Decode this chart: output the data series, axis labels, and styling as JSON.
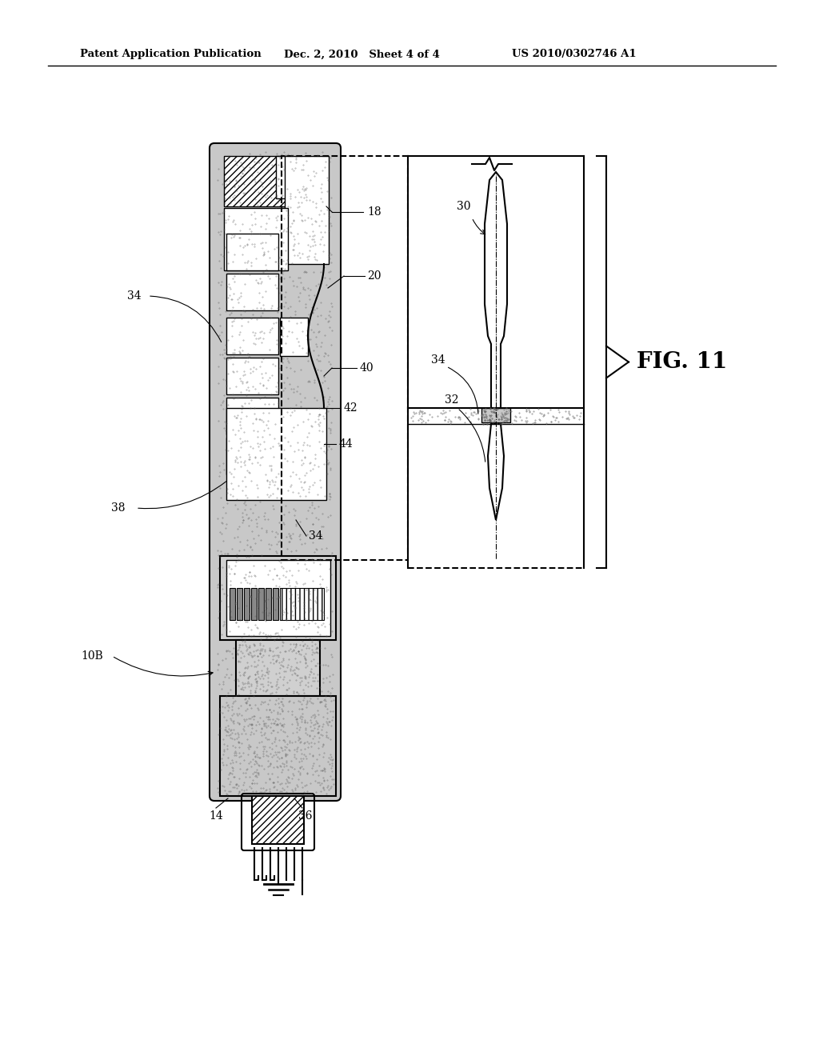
{
  "header_left": "Patent Application Publication",
  "header_mid": "Dec. 2, 2010   Sheet 4 of 4",
  "header_right": "US 2010/0302746 A1",
  "fig_label": "FIG. 11",
  "bg_color": "#ffffff",
  "line_color": "#000000",
  "stipple_gray": "#b0b0b0",
  "hatch_gray": "#999999"
}
